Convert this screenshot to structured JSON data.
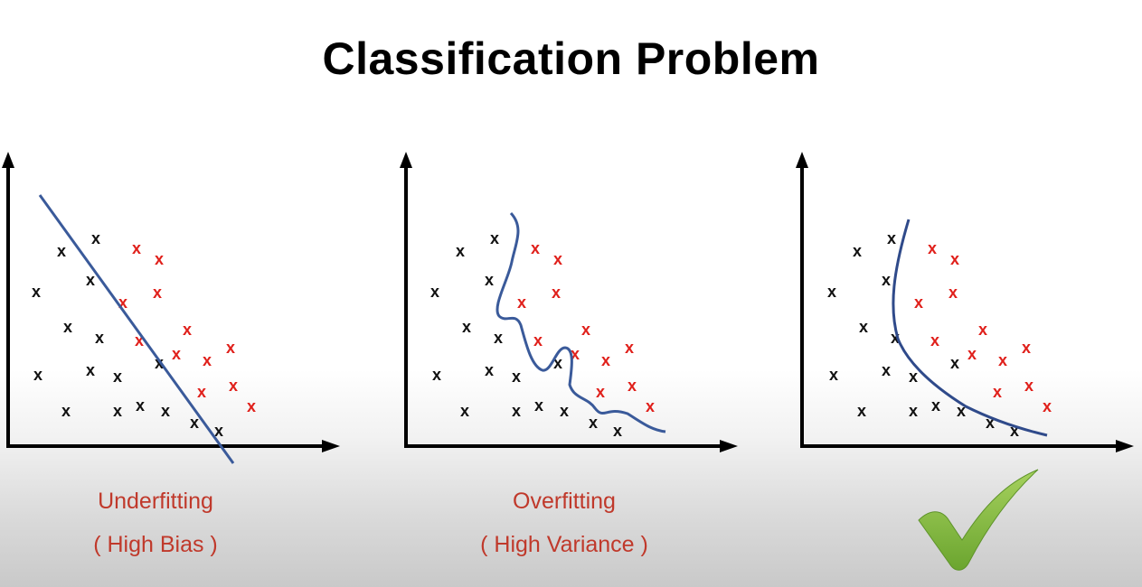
{
  "title": "Classification Problem",
  "panels": [
    {
      "caption_line1": "Underfitting",
      "caption_line2": "( High Bias )",
      "boundary": "straight line"
    },
    {
      "caption_line1": "Overfitting",
      "caption_line2": "( High Variance )",
      "boundary": "wiggly curve"
    },
    {
      "caption_line1": "",
      "caption_line2": "",
      "boundary": "smooth curve",
      "badge": "checkmark-icon"
    }
  ],
  "marker_symbol": "x",
  "colors": {
    "class_a": "#111111",
    "class_b": "#e0201b",
    "boundary": "#3a5a9a",
    "caption": "#c0392b",
    "check": "#7db83a"
  }
}
